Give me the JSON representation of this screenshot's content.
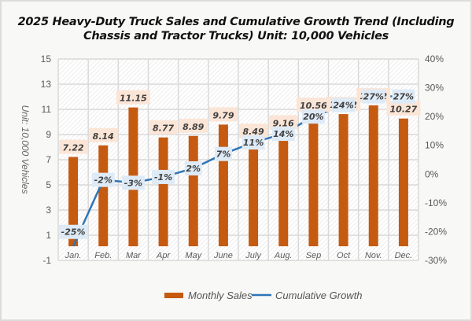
{
  "chart_data": {
    "type": "bar+line",
    "title_line1": "2025 Heavy-Duty Truck Sales and Cumulative Growth Trend (Including",
    "title_line2": "Chassis and Tractor Trucks) Unit: 10,000 Vehicles",
    "categories": [
      "Jan.",
      "Feb.",
      "Mar",
      "Apr",
      "May",
      "June",
      "July",
      "Aug.",
      "Sep",
      "Oct",
      "Nov.",
      "Dec."
    ],
    "series": [
      {
        "name": "Monthly Sales",
        "type": "bar",
        "axis": "left",
        "color": "#C55A11",
        "values": [
          7.22,
          8.14,
          11.15,
          8.77,
          8.89,
          9.79,
          8.49,
          9.16,
          10.56,
          10.62,
          11.32,
          10.27
        ],
        "labels": [
          "7.22",
          "8.14",
          "11.15",
          "8.77",
          "8.89",
          "9.79",
          "8.49",
          "9.16",
          "10.56",
          "10.62",
          "11.32",
          "10.27"
        ]
      },
      {
        "name": "Cumulative Growth",
        "type": "line",
        "axis": "right",
        "color": "#2E75B6",
        "values": [
          -25,
          -2,
          -3,
          -1,
          2,
          7,
          11,
          14,
          20,
          24,
          27,
          27
        ],
        "labels": [
          "-25%",
          "-2%",
          "-3%",
          "-1%",
          "2%",
          "7%",
          "11%",
          "14%",
          "20%",
          "24%",
          "27%",
          "27%"
        ]
      }
    ],
    "ylabel": "Unit: 10,000 Vehicles",
    "ylim": [
      -1,
      15
    ],
    "yticks": [
      "15",
      "13",
      "11",
      "9",
      "7",
      "5",
      "3",
      "1",
      "-1"
    ],
    "y2lim": [
      -30,
      40
    ],
    "y2ticks": [
      "40%",
      "30%",
      "20%",
      "10%",
      "0%",
      "-10%",
      "-20%",
      "-30%"
    ],
    "grid": true,
    "legend": [
      "Monthly Sales",
      "Cumulative Growth"
    ],
    "legend_position": "bottom",
    "label_colors": {
      "bar_label_bg": "#FBE5D6",
      "line_label_bg": "#DEEBF7"
    }
  }
}
